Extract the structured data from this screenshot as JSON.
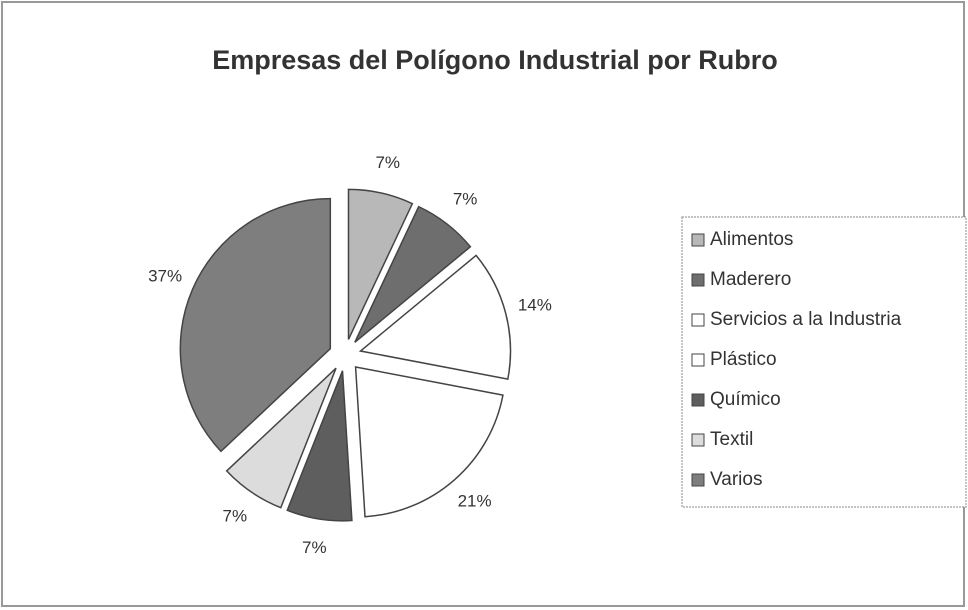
{
  "chart_data": {
    "type": "pie",
    "title": "Empresas del Polígono Industrial por Rubro",
    "categories": [
      "Alimentos",
      "Maderero",
      "Servicios a la Industria",
      "Plástico",
      "Químico",
      "Textil",
      "Varios"
    ],
    "values": [
      7,
      7,
      14,
      21,
      7,
      7,
      37
    ],
    "value_labels": [
      "7%",
      "7%",
      "14%",
      "21%",
      "7%",
      "7%",
      "37%"
    ],
    "colors": [
      "#b8b8b8",
      "#6e6e6e",
      "#ffffff",
      "#ffffff",
      "#5e5e5e",
      "#dcdcdc",
      "#7e7e7e"
    ],
    "legend": "right"
  }
}
